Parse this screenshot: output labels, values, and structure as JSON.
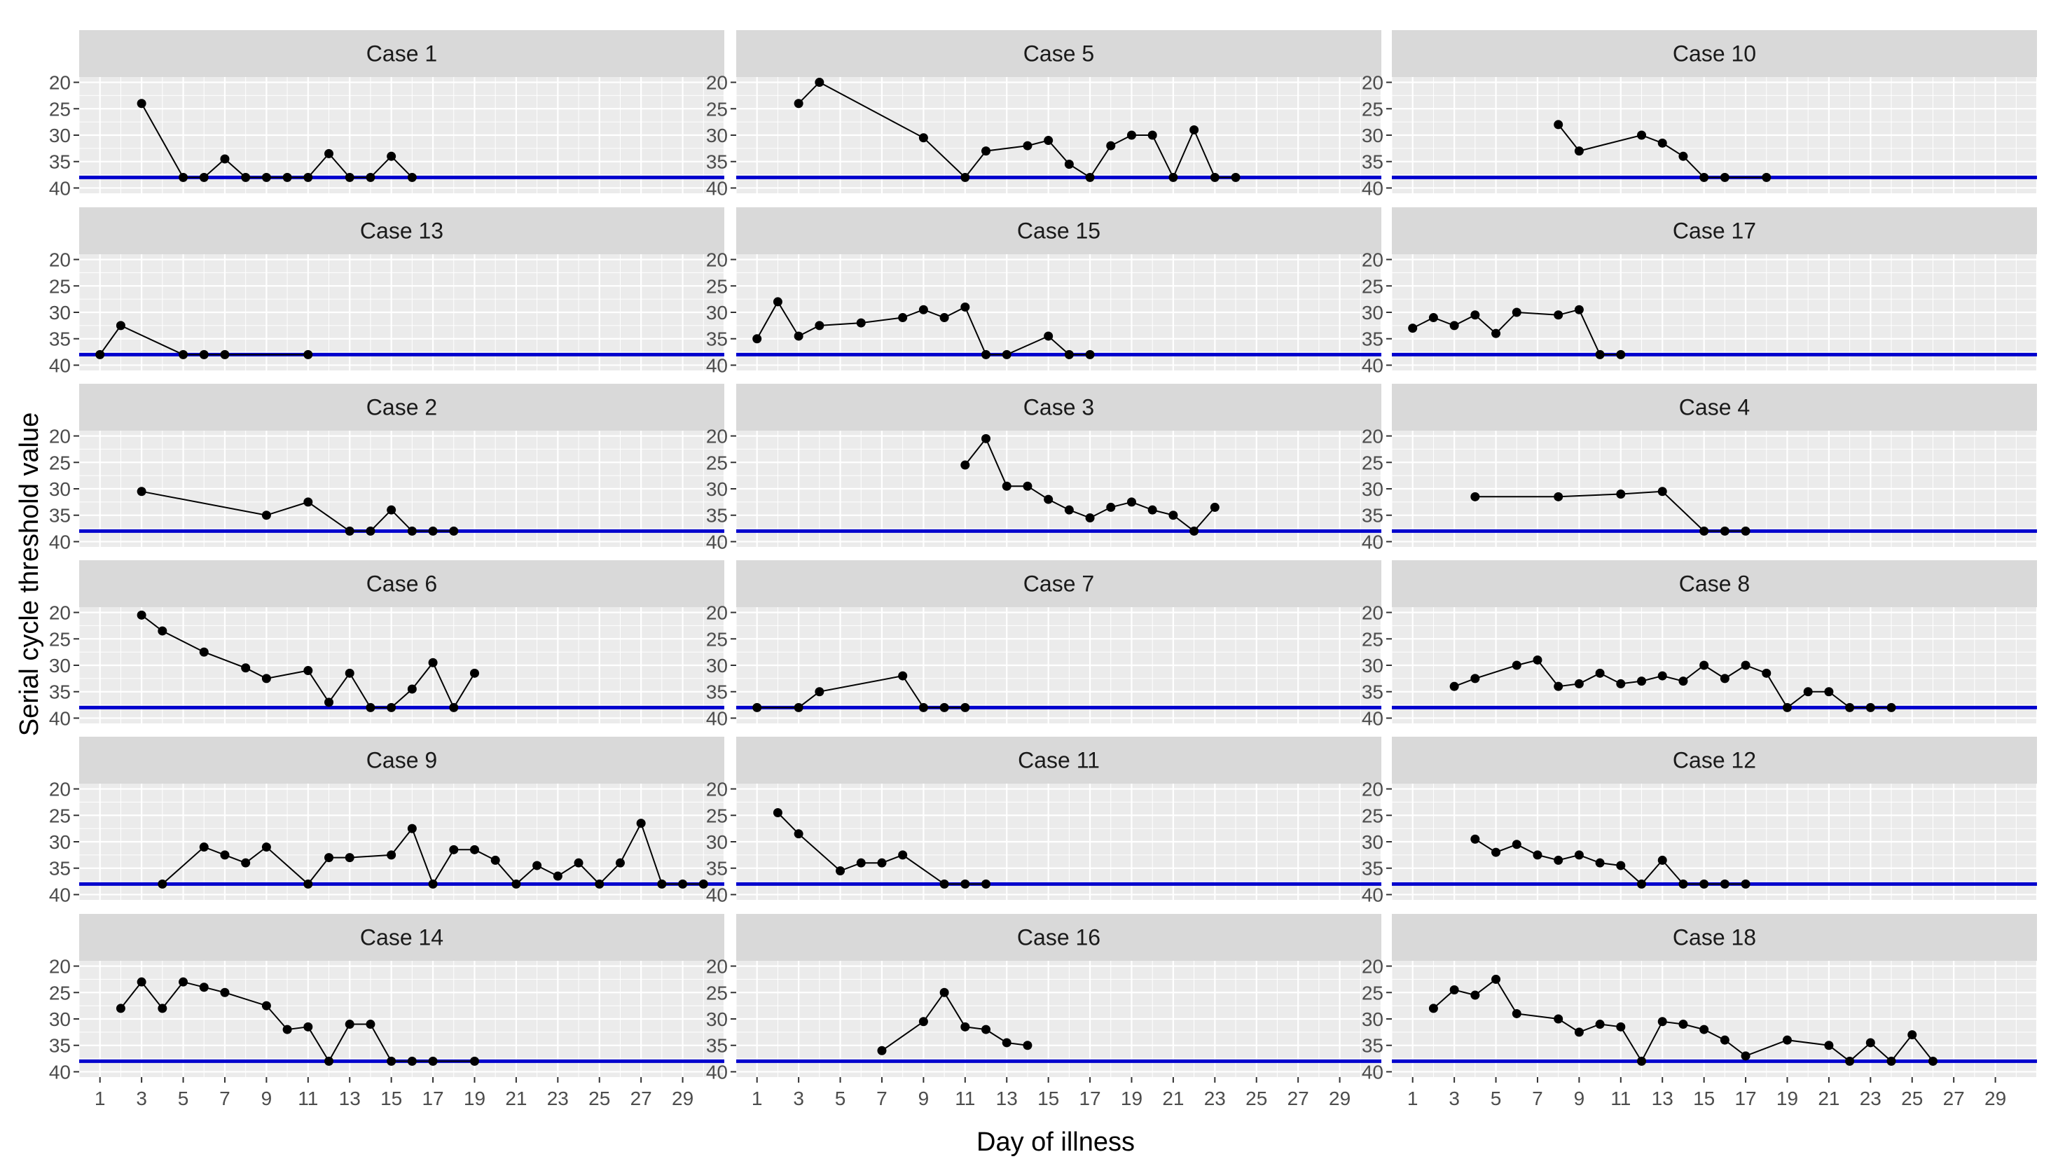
{
  "chart_data": {
    "type": "line",
    "xlabel": "Day of illness",
    "ylabel": "Serial cycle threshold value",
    "x_range": [
      0,
      31
    ],
    "y_range": [
      19,
      41
    ],
    "y_reversed": true,
    "x_ticks": [
      1,
      3,
      5,
      7,
      9,
      11,
      13,
      15,
      17,
      19,
      21,
      23,
      25,
      27,
      29
    ],
    "y_ticks": [
      20,
      25,
      30,
      35,
      40
    ],
    "threshold_line": {
      "y": 38,
      "color": "#0000CD"
    },
    "grid": true,
    "panel_background": "#EBEBEB",
    "strip_background": "#D9D9D9",
    "point_color": "#000000",
    "panels": [
      {
        "title": "Case 1",
        "x": [
          3,
          5,
          6,
          7,
          8,
          9,
          10,
          11,
          12,
          13,
          14,
          15,
          16
        ],
        "y": [
          24,
          38,
          38,
          34.5,
          38,
          38,
          38,
          38,
          33.5,
          38,
          38,
          34,
          38
        ]
      },
      {
        "title": "Case 5",
        "x": [
          3,
          4,
          9,
          11,
          12,
          14,
          15,
          16,
          17,
          18,
          19,
          20,
          21,
          22,
          23,
          24
        ],
        "y": [
          24,
          20,
          30.5,
          38,
          33,
          32,
          31,
          35.5,
          38,
          32,
          30,
          30,
          38,
          29,
          38,
          38
        ]
      },
      {
        "title": "Case 10",
        "x": [
          8,
          9,
          12,
          13,
          14,
          15,
          16,
          18
        ],
        "y": [
          28,
          33,
          30,
          31.5,
          34,
          38,
          38,
          38
        ]
      },
      {
        "title": "Case 13",
        "x": [
          1,
          2,
          5,
          6,
          7,
          11
        ],
        "y": [
          38,
          32.5,
          38,
          38,
          38,
          38
        ]
      },
      {
        "title": "Case 15",
        "x": [
          1,
          2,
          3,
          4,
          6,
          8,
          9,
          10,
          11,
          12,
          13,
          15,
          16,
          17
        ],
        "y": [
          35,
          28,
          34.5,
          32.5,
          32,
          31,
          29.5,
          31,
          29,
          38,
          38,
          34.5,
          38,
          38
        ]
      },
      {
        "title": "Case 17",
        "x": [
          1,
          2,
          3,
          4,
          5,
          6,
          8,
          9,
          10,
          11
        ],
        "y": [
          33,
          31,
          32.5,
          30.5,
          34,
          30,
          30.5,
          29.5,
          38,
          38
        ]
      },
      {
        "title": "Case 2",
        "x": [
          3,
          9,
          11,
          13,
          14,
          15,
          16,
          17,
          18
        ],
        "y": [
          30.5,
          35,
          32.5,
          38,
          38,
          34,
          38,
          38,
          38
        ]
      },
      {
        "title": "Case 3",
        "x": [
          11,
          12,
          13,
          14,
          15,
          16,
          17,
          18,
          19,
          20,
          21,
          22,
          23
        ],
        "y": [
          25.5,
          20.5,
          29.5,
          29.5,
          32,
          34,
          35.5,
          33.5,
          32.5,
          34,
          35,
          38,
          33.5
        ]
      },
      {
        "title": "Case 4",
        "x": [
          4,
          8,
          11,
          13,
          15,
          16,
          17
        ],
        "y": [
          31.5,
          31.5,
          31,
          30.5,
          38,
          38,
          38
        ]
      },
      {
        "title": "Case 6",
        "x": [
          3,
          4,
          6,
          8,
          9,
          11,
          12,
          13,
          14,
          15,
          16,
          17,
          18,
          19
        ],
        "y": [
          20.5,
          23.5,
          27.5,
          30.5,
          32.5,
          31,
          37,
          31.5,
          38,
          38,
          34.5,
          29.5,
          38,
          31.5
        ]
      },
      {
        "title": "Case 7",
        "x": [
          1,
          3,
          4,
          8,
          9,
          10,
          11
        ],
        "y": [
          38,
          38,
          35,
          32,
          38,
          38,
          38
        ]
      },
      {
        "title": "Case 8",
        "x": [
          3,
          4,
          6,
          7,
          8,
          9,
          10,
          11,
          12,
          13,
          14,
          15,
          16,
          17,
          18,
          19,
          20,
          21,
          22,
          23,
          24
        ],
        "y": [
          34,
          32.5,
          30,
          29,
          34,
          33.5,
          31.5,
          33.5,
          33,
          32,
          33,
          30,
          32.5,
          30,
          31.5,
          38,
          35,
          35,
          38,
          38,
          38
        ]
      },
      {
        "title": "Case 9",
        "x": [
          4,
          6,
          7,
          8,
          9,
          11,
          12,
          13,
          15,
          16,
          17,
          18,
          19,
          20,
          21,
          22,
          23,
          24,
          25,
          26,
          27,
          28,
          29,
          30
        ],
        "y": [
          38,
          31,
          32.5,
          34,
          31,
          38,
          33,
          33,
          32.5,
          27.5,
          38,
          31.5,
          31.5,
          33.5,
          38,
          34.5,
          36.5,
          34,
          38,
          34,
          26.5,
          38,
          38,
          38
        ]
      },
      {
        "title": "Case 11",
        "x": [
          2,
          3,
          5,
          6,
          7,
          8,
          10,
          11,
          12
        ],
        "y": [
          24.5,
          28.5,
          35.5,
          34,
          34,
          32.5,
          38,
          38,
          38
        ]
      },
      {
        "title": "Case 12",
        "x": [
          4,
          5,
          6,
          7,
          8,
          9,
          10,
          11,
          12,
          13,
          14,
          15,
          16,
          17
        ],
        "y": [
          29.5,
          32,
          30.5,
          32.5,
          33.5,
          32.5,
          34,
          34.5,
          38,
          33.5,
          38,
          38,
          38,
          38
        ]
      },
      {
        "title": "Case 14",
        "x": [
          2,
          3,
          4,
          5,
          6,
          7,
          9,
          10,
          11,
          12,
          13,
          14,
          15,
          16,
          17,
          19
        ],
        "y": [
          28,
          23,
          28,
          23,
          24,
          25,
          27.5,
          32,
          31.5,
          38,
          31,
          31,
          38,
          38,
          38,
          38
        ]
      },
      {
        "title": "Case 16",
        "x": [
          7,
          9,
          10,
          11,
          12,
          13,
          14
        ],
        "y": [
          36,
          30.5,
          25,
          31.5,
          32,
          34.5,
          35
        ]
      },
      {
        "title": "Case 18",
        "x": [
          2,
          3,
          4,
          5,
          6,
          8,
          9,
          10,
          11,
          12,
          13,
          14,
          15,
          16,
          17,
          19,
          21,
          22,
          23,
          24,
          25,
          26
        ],
        "y": [
          28,
          24.5,
          25.5,
          22.5,
          29,
          30,
          32.5,
          31,
          31.5,
          38,
          30.5,
          31,
          32,
          34,
          37,
          34,
          35,
          38,
          34.5,
          38,
          33,
          38
        ]
      }
    ]
  }
}
